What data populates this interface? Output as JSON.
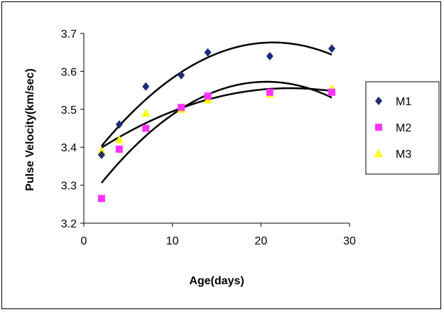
{
  "chart_data": {
    "type": "scatter",
    "title": "",
    "xlabel": "Age(days)",
    "ylabel": "Pulse Velocity(km/sec)",
    "xlim": [
      0,
      30
    ],
    "ylim": [
      3.2,
      3.7
    ],
    "x_ticks": [
      "0",
      "10",
      "20",
      "30"
    ],
    "y_ticks": [
      "3.2",
      "3.3",
      "3.4",
      "3.5",
      "3.6",
      "3.7"
    ],
    "x_tick_values": [
      0,
      10,
      20,
      30
    ],
    "y_tick_values": [
      3.2,
      3.3,
      3.4,
      3.5,
      3.6,
      3.7
    ],
    "grid": false,
    "legend_position": "right",
    "x": [
      2,
      4,
      7,
      11,
      14,
      21,
      28
    ],
    "series": [
      {
        "name": "M1",
        "marker": "diamond",
        "color": "#1F2A78",
        "values": [
          3.38,
          3.46,
          3.56,
          3.59,
          3.65,
          3.64,
          3.66
        ]
      },
      {
        "name": "M2",
        "marker": "square",
        "color": "#FF33FF",
        "values": [
          3.265,
          3.395,
          3.45,
          3.505,
          3.535,
          3.545,
          3.545
        ]
      },
      {
        "name": "M3",
        "marker": "triangle",
        "color": "#FFFF00",
        "values": [
          3.39,
          3.42,
          3.49,
          3.5,
          3.525,
          3.54,
          3.555
        ]
      }
    ],
    "trendline_color": "#000000"
  }
}
